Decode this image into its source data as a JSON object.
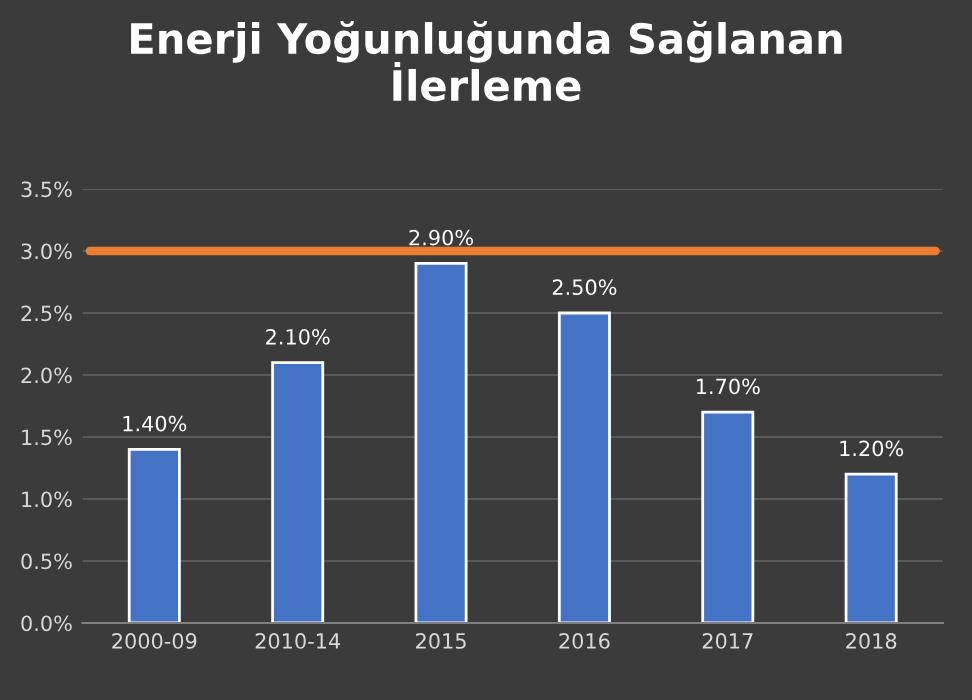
{
  "chart_data": {
    "type": "bar",
    "title": "Enerji Yoğunluğunda Sağlanan\nİlerleme",
    "categories": [
      "2000-09",
      "2010-14",
      "2015",
      "2016",
      "2017",
      "2018"
    ],
    "values": [
      1.4,
      2.1,
      2.9,
      2.5,
      1.7,
      1.2
    ],
    "value_labels": [
      "1.40%",
      "2.10%",
      "2.90%",
      "2.50%",
      "1.70%",
      "1.20%"
    ],
    "color": "#4472c4",
    "ylim": [
      0,
      3.5
    ],
    "yticks": [
      {
        "value": 0,
        "label": "0.0%"
      },
      {
        "value": 0.5,
        "label": "0.5%"
      },
      {
        "value": 1,
        "label": "1.0%"
      },
      {
        "value": 1.5,
        "label": "1.5%"
      },
      {
        "value": 2,
        "label": "2.0%"
      },
      {
        "value": 2.5,
        "label": "2.5%"
      },
      {
        "value": 3,
        "label": "3.0%"
      },
      {
        "value": 3.5,
        "label": "3.5%"
      }
    ],
    "ref_lines": [
      {
        "axis": "y",
        "value": 3.0,
        "color": "#ed7d31"
      }
    ],
    "grid": "y"
  }
}
